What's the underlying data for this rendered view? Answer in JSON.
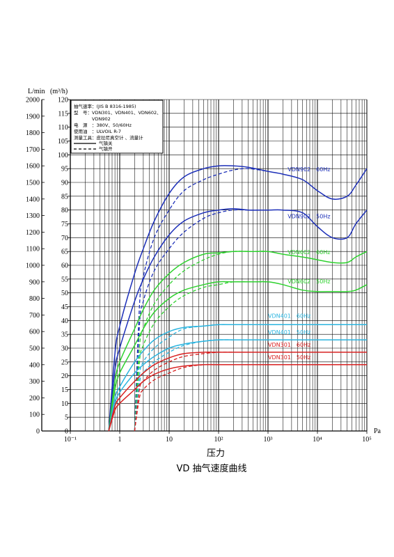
{
  "chart_data": {
    "type": "line",
    "title": "VD 抽气速度曲线",
    "xlabel": "压力",
    "x_unit": "Pa",
    "y_unit_left": "L/min",
    "y_unit_right": "(m³/h)",
    "x_scale": "log",
    "xlim": [
      0.1,
      100000
    ],
    "x_ticks": [
      "10⁻¹",
      "1",
      "10",
      "10²",
      "10³",
      "10⁴",
      "10⁵"
    ],
    "ylim_left": [
      0,
      2000
    ],
    "ylim_right": [
      0,
      120
    ],
    "y_ticks_left": [
      0,
      100,
      200,
      300,
      400,
      500,
      600,
      700,
      800,
      900,
      1000,
      1100,
      1200,
      1300,
      1400,
      1500,
      1600,
      1700,
      1800,
      1900,
      2000
    ],
    "y_ticks_right": [
      0,
      5,
      10,
      15,
      20,
      25,
      30,
      35,
      40,
      45,
      50,
      55,
      60,
      65,
      70,
      75,
      80,
      85,
      90,
      95,
      100,
      105,
      110,
      115,
      120
    ],
    "grid": true,
    "legend": {
      "placement": "top-left",
      "lines": [
        "抽气速率：(JIS B 8316-1985)",
        "型　号：VDN301、VDN401、VDN602、",
        "　　　　VDN902",
        "电　源　：380V、50/60Hz",
        "使用油　：ULVOIL R-7",
        "测量工具：皮拉尼真空计 、流量计"
      ],
      "solid_label": "气镇关",
      "dashed_label": "气镇开"
    },
    "series": [
      {
        "name": "VDN902 60Hz",
        "color": "#1c2fb8",
        "y_axis": "m3/h",
        "x": [
          0.6,
          0.8,
          1,
          2,
          3,
          5,
          10,
          20,
          50,
          100,
          200,
          400,
          1000,
          2000,
          5000,
          10000,
          20000,
          40000,
          60000,
          100000
        ],
        "y": [
          0,
          28,
          38,
          57,
          66,
          76,
          86,
          92,
          95,
          96,
          96,
          95.5,
          94,
          93,
          91,
          87,
          84,
          85,
          89,
          95
        ],
        "dashed": {
          "x": [
            2,
            2.5,
            3,
            5,
            10,
            20,
            50,
            100,
            200,
            400,
            1000
          ],
          "y": [
            0,
            45,
            56,
            70,
            80,
            87,
            91,
            93,
            94.5,
            95,
            94
          ]
        }
      },
      {
        "name": "VDN902 50Hz",
        "color": "#1c2fb8",
        "y_axis": "m3/h",
        "x": [
          0.6,
          0.8,
          1,
          2,
          3,
          5,
          10,
          20,
          50,
          100,
          200,
          400,
          1000,
          2000,
          5000,
          10000,
          20000,
          40000,
          60000,
          100000
        ],
        "y": [
          0,
          22,
          30,
          47,
          55,
          63,
          71,
          76,
          79,
          80,
          80.5,
          80,
          80,
          80,
          79,
          74,
          70,
          70,
          75,
          80
        ],
        "dashed": {
          "x": [
            2,
            2.5,
            3,
            5,
            10,
            20,
            50,
            100,
            200,
            400,
            1000
          ],
          "y": [
            0,
            38,
            47,
            58,
            66,
            72,
            77,
            79,
            80,
            80,
            80
          ]
        }
      },
      {
        "name": "VDN602 60Hz",
        "color": "#2ed12e",
        "y_axis": "m3/h",
        "x": [
          0.6,
          0.8,
          1,
          2,
          3,
          5,
          10,
          20,
          50,
          100,
          200,
          500,
          1000,
          2000,
          5000,
          10000,
          20000,
          40000,
          60000,
          100000
        ],
        "y": [
          0,
          18,
          25,
          37,
          44,
          51,
          57,
          61,
          64,
          64.5,
          65,
          65,
          65,
          64,
          63,
          62,
          61,
          61,
          63,
          65
        ],
        "dashed": {
          "x": [
            2,
            2.5,
            3,
            5,
            10,
            20,
            50,
            100,
            200,
            500,
            1000
          ],
          "y": [
            0,
            30,
            37,
            46,
            53,
            58,
            62,
            64,
            65,
            65,
            65
          ]
        }
      },
      {
        "name": "VDN602 50Hz",
        "color": "#2ed12e",
        "y_axis": "m3/h",
        "x": [
          0.6,
          0.8,
          1,
          2,
          3,
          5,
          10,
          20,
          50,
          100,
          200,
          500,
          1000,
          2000,
          5000,
          10000,
          20000,
          40000,
          60000,
          100000
        ],
        "y": [
          0,
          15,
          21,
          31,
          37,
          43,
          48,
          51,
          53,
          54,
          54,
          54,
          54,
          53,
          51,
          50.5,
          50.5,
          50.5,
          51,
          53
        ],
        "dashed": {
          "x": [
            2,
            2.5,
            3,
            5,
            10,
            20,
            50,
            100,
            200,
            500,
            1000
          ],
          "y": [
            0,
            25,
            31,
            39,
            45,
            49,
            52,
            53,
            54,
            54,
            54
          ]
        }
      },
      {
        "name": "VDN401 60Hz",
        "color": "#2ab4df",
        "y_axis": "m3/h",
        "x": [
          0.6,
          0.8,
          1,
          2,
          3,
          5,
          10,
          20,
          50,
          100,
          200,
          500,
          1000,
          10000,
          100000
        ],
        "y": [
          0,
          12,
          16,
          25,
          29,
          33,
          36,
          37.5,
          38,
          38.5,
          38.5,
          38.5,
          38.5,
          38.5,
          38.5
        ],
        "dashed": {
          "x": [
            2,
            2.5,
            3,
            5,
            10,
            20,
            50,
            100,
            200
          ],
          "y": [
            0,
            20,
            25,
            30,
            34,
            37,
            38,
            38.5,
            38.5
          ]
        }
      },
      {
        "name": "VDN401 50Hz",
        "color": "#2ab4df",
        "y_axis": "m3/h",
        "x": [
          0.6,
          0.8,
          1,
          2,
          3,
          5,
          10,
          20,
          50,
          100,
          200,
          500,
          1000,
          10000,
          100000
        ],
        "y": [
          0,
          10,
          14,
          21,
          24,
          27,
          30,
          31.5,
          32.5,
          33,
          33,
          33,
          33,
          33,
          33
        ],
        "dashed": {
          "x": [
            2,
            2.5,
            3,
            5,
            10,
            20,
            50,
            100,
            200
          ],
          "y": [
            0,
            17,
            21,
            25,
            28.5,
            31,
            32.5,
            33,
            33
          ]
        }
      },
      {
        "name": "VDN301 60Hz",
        "color": "#d82020",
        "y_axis": "m3/h",
        "x": [
          0.6,
          0.8,
          1,
          2,
          3,
          5,
          10,
          20,
          50,
          100,
          200,
          500,
          1000,
          10000,
          100000
        ],
        "y": [
          0,
          9,
          12,
          18,
          21,
          24,
          26.5,
          28,
          28.5,
          28.5,
          28.5,
          28.5,
          28.5,
          28.5,
          28.5
        ],
        "dashed": {
          "x": [
            2,
            2.5,
            3,
            5,
            10,
            20,
            50,
            100,
            200
          ],
          "y": [
            0,
            15,
            18,
            22,
            25,
            27,
            28,
            28.5,
            28.5
          ]
        }
      },
      {
        "name": "VDN301 50Hz",
        "color": "#d82020",
        "y_axis": "m3/h",
        "x": [
          0.6,
          0.8,
          1,
          2,
          3,
          5,
          10,
          20,
          50,
          100,
          200,
          500,
          1000,
          10000,
          100000
        ],
        "y": [
          0,
          7.5,
          10,
          15,
          18,
          20.5,
          22.5,
          23.5,
          24,
          24,
          24,
          24,
          24,
          24,
          24
        ],
        "dashed": {
          "x": [
            2,
            2.5,
            3,
            5,
            10,
            20,
            50,
            100,
            200
          ],
          "y": [
            0,
            12,
            15,
            18.5,
            21,
            23,
            24,
            24,
            24
          ]
        }
      }
    ],
    "series_labels": [
      {
        "text": "VDN902　60Hz",
        "color": "#1c2fb8",
        "x": 2500,
        "y": 94
      },
      {
        "text": "VDN902　50Hz",
        "color": "#1c2fb8",
        "x": 2500,
        "y": 77
      },
      {
        "text": "VDN602　60Hz",
        "color": "#2ed12e",
        "x": 2500,
        "y": 64
      },
      {
        "text": "VDN602　50Hz",
        "color": "#2ed12e",
        "x": 2500,
        "y": 53.5
      },
      {
        "text": "VDN401　60Hz",
        "color": "#2ab4df",
        "x": 1000,
        "y": 41
      },
      {
        "text": "VDN401　50Hz",
        "color": "#2ab4df",
        "x": 1000,
        "y": 35
      },
      {
        "text": "VDN301　60Hz",
        "color": "#d82020",
        "x": 1000,
        "y": 30.5
      },
      {
        "text": "VDN301　50Hz",
        "color": "#d82020",
        "x": 1000,
        "y": 26
      }
    ]
  }
}
